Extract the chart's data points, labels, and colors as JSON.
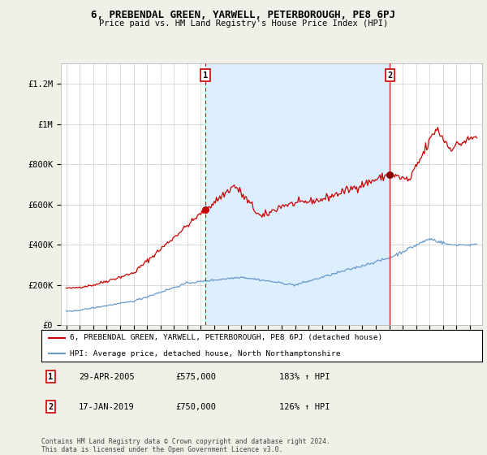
{
  "title": "6, PREBENDAL GREEN, YARWELL, PETERBOROUGH, PE8 6PJ",
  "subtitle": "Price paid vs. HM Land Registry's House Price Index (HPI)",
  "legend_line1": "6, PREBENDAL GREEN, YARWELL, PETERBOROUGH, PE8 6PJ (detached house)",
  "legend_line2": "HPI: Average price, detached house, North Northamptonshire",
  "footnote": "Contains HM Land Registry data © Crown copyright and database right 2024.\nThis data is licensed under the Open Government Licence v3.0.",
  "point1_date": "29-APR-2005",
  "point1_price": "£575,000",
  "point1_hpi": "183% ↑ HPI",
  "point2_date": "17-JAN-2019",
  "point2_price": "£750,000",
  "point2_hpi": "126% ↑ HPI",
  "ylim": [
    0,
    1300000
  ],
  "yticks": [
    0,
    200000,
    400000,
    600000,
    800000,
    1000000,
    1200000
  ],
  "ytick_labels": [
    "£0",
    "£200K",
    "£400K",
    "£600K",
    "£800K",
    "£1M",
    "£1.2M"
  ],
  "line_color_red": "#cc0000",
  "line_color_blue": "#6699cc",
  "shade_color": "#ddeeff",
  "background_color": "#f0f0e8",
  "plot_bg_color": "#ffffff",
  "grid_color": "#cccccc",
  "vline_color": "#cc0000",
  "point1_x": 2005.33,
  "point2_x": 2019.05,
  "point1_y": 575000,
  "point2_y": 750000,
  "xlim_left": 1994.6,
  "xlim_right": 2025.9
}
